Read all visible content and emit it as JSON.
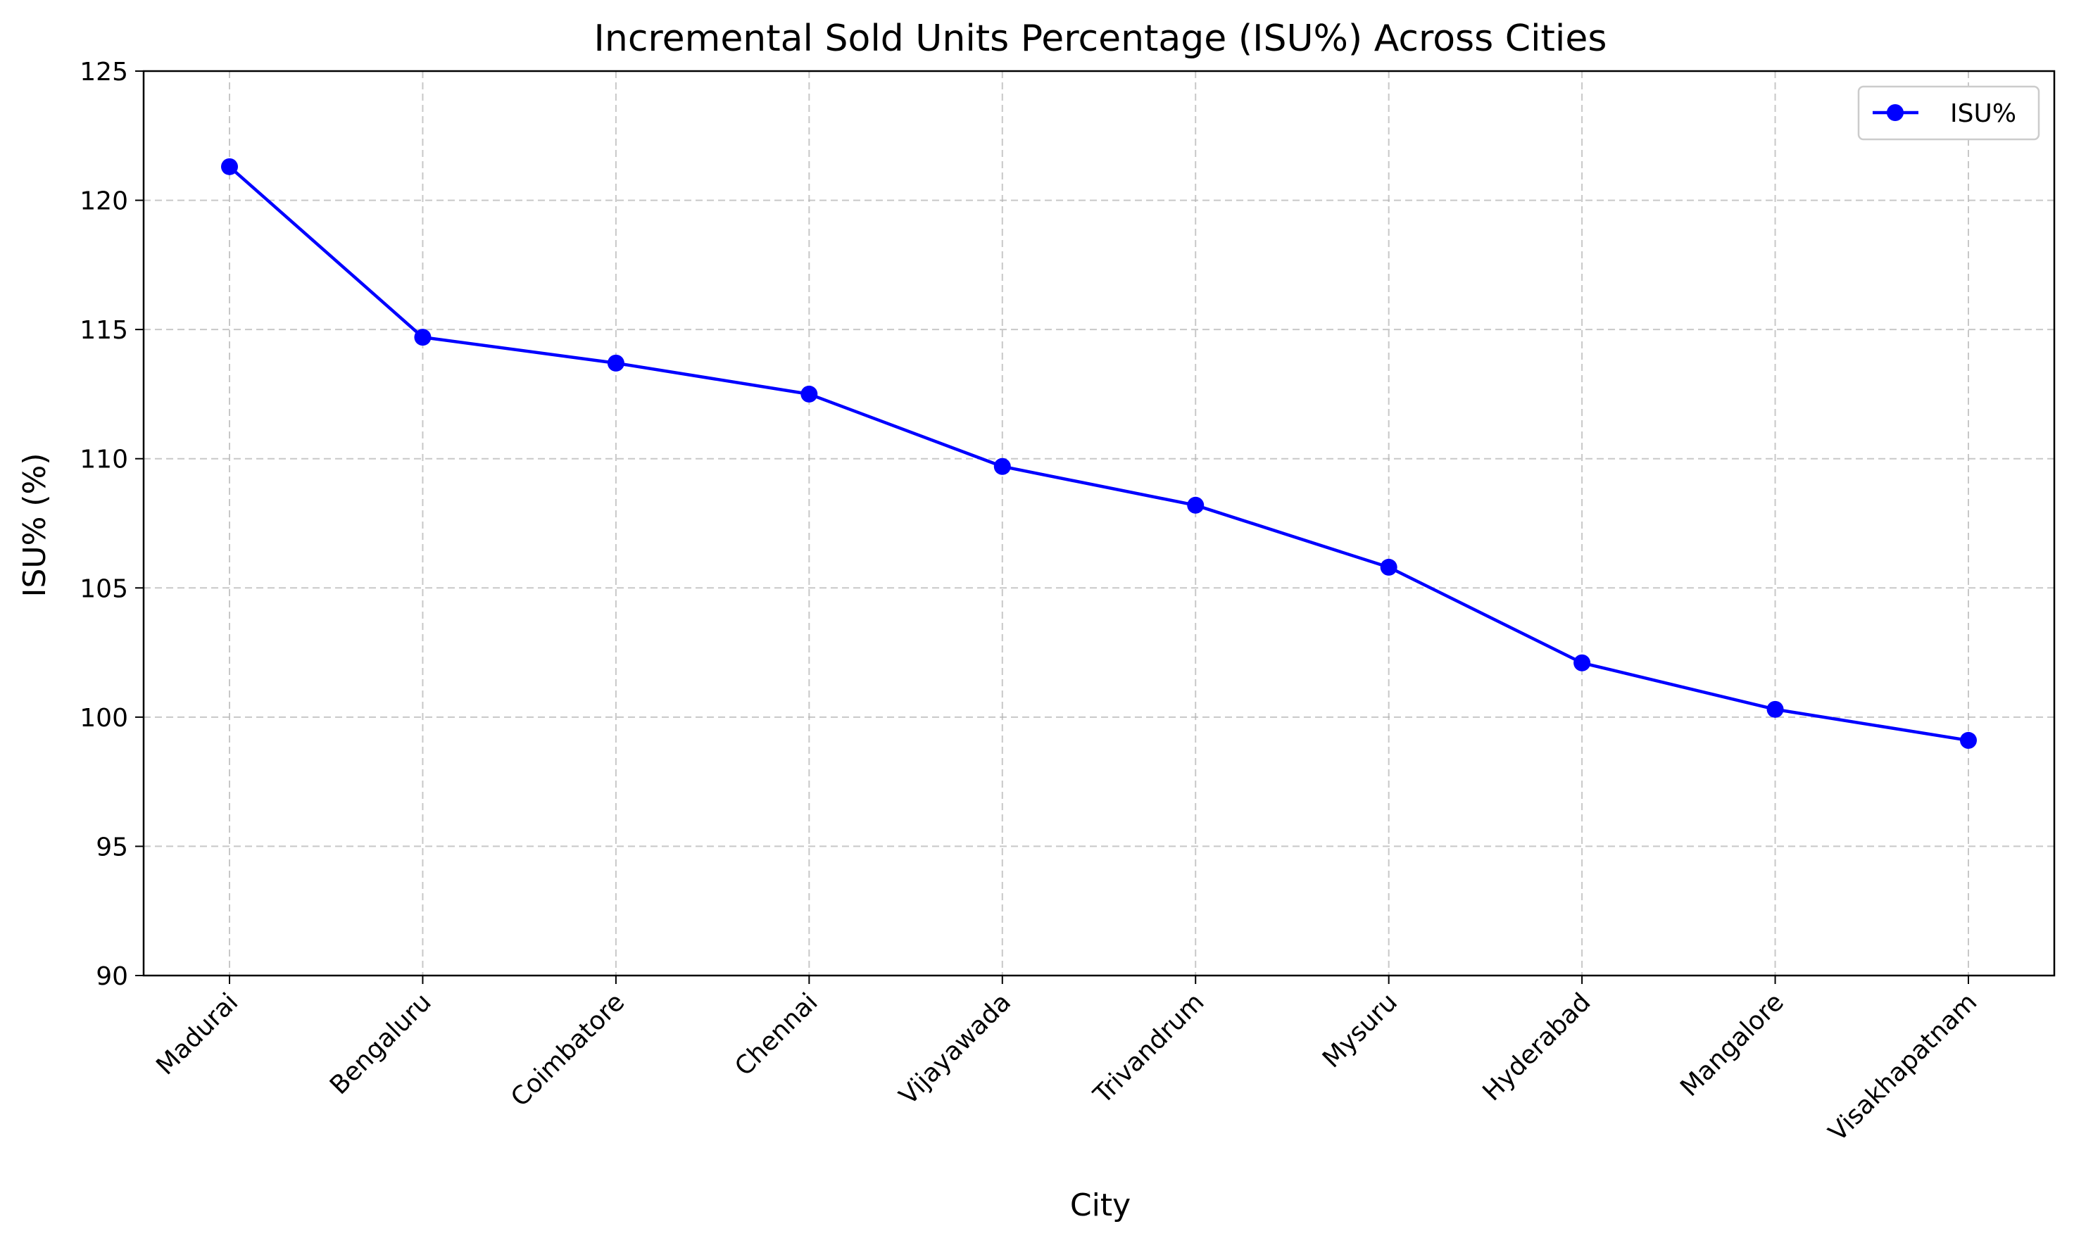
{
  "chart_data": {
    "type": "line",
    "title": "Incremental Sold Units Percentage (ISU%) Across Cities",
    "xlabel": "City",
    "ylabel": "ISU% (%)",
    "categories": [
      "Madurai",
      "Bengaluru",
      "Coimbatore",
      "Chennai",
      "Vijayawada",
      "Trivandrum",
      "Mysuru",
      "Hyderabad",
      "Mangalore",
      "Visakhapatnam"
    ],
    "series": [
      {
        "name": "ISU%",
        "values": [
          121.3,
          114.7,
          113.7,
          112.5,
          109.7,
          108.2,
          105.8,
          102.1,
          100.3,
          99.1
        ],
        "color": "#0000ff",
        "marker": "circle"
      }
    ],
    "ylim": [
      90,
      125
    ],
    "yticks": [
      90,
      95,
      100,
      105,
      110,
      115,
      120,
      125
    ],
    "grid": true,
    "legend_position": "top-right",
    "xtick_rotation": 45
  }
}
